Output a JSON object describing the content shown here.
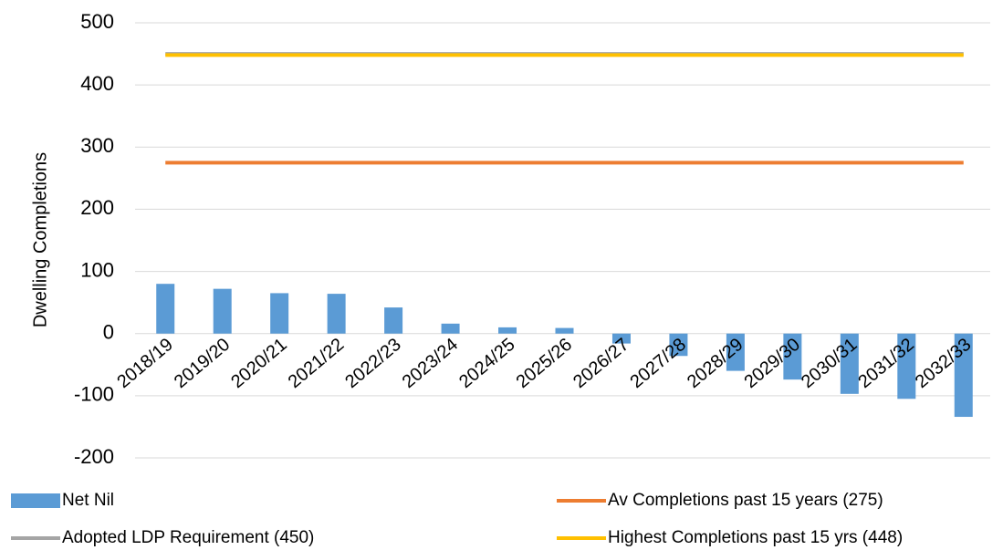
{
  "chart_data": {
    "type": "bar",
    "ylabel": "Dwelling Completions",
    "categories": [
      "2018/19",
      "2019/20",
      "2020/21",
      "2021/22",
      "2022/23",
      "2023/24",
      "2024/25",
      "2025/26",
      "2026/27",
      "2027/28",
      "2028/29",
      "2029/30",
      "2030/31",
      "2031/32",
      "2032/33"
    ],
    "series": [
      {
        "name": "Net Nil",
        "type": "bar",
        "color": "#5b9bd5",
        "values": [
          80,
          72,
          65,
          64,
          42,
          16,
          10,
          9,
          -16,
          -36,
          -60,
          -74,
          -97,
          -105,
          -134
        ]
      },
      {
        "name": "Av Completions past 15 years (275)",
        "type": "line",
        "color": "#ed7d31",
        "values": [
          275,
          275,
          275,
          275,
          275,
          275,
          275,
          275,
          275,
          275,
          275,
          275,
          275,
          275,
          275
        ]
      },
      {
        "name": "Adopted LDP Requirement (450)",
        "type": "line",
        "color": "#a5a5a5",
        "values": [
          450,
          450,
          450,
          450,
          450,
          450,
          450,
          450,
          450,
          450,
          450,
          450,
          450,
          450,
          450
        ]
      },
      {
        "name": "Highest Completions past 15 yrs (448)",
        "type": "line",
        "color": "#ffc000",
        "values": [
          448,
          448,
          448,
          448,
          448,
          448,
          448,
          448,
          448,
          448,
          448,
          448,
          448,
          448,
          448
        ]
      }
    ],
    "ylim": [
      -200,
      500
    ],
    "yticks": [
      -200,
      -100,
      0,
      100,
      200,
      300,
      400,
      500
    ],
    "grid": true,
    "legend": "bottom"
  }
}
